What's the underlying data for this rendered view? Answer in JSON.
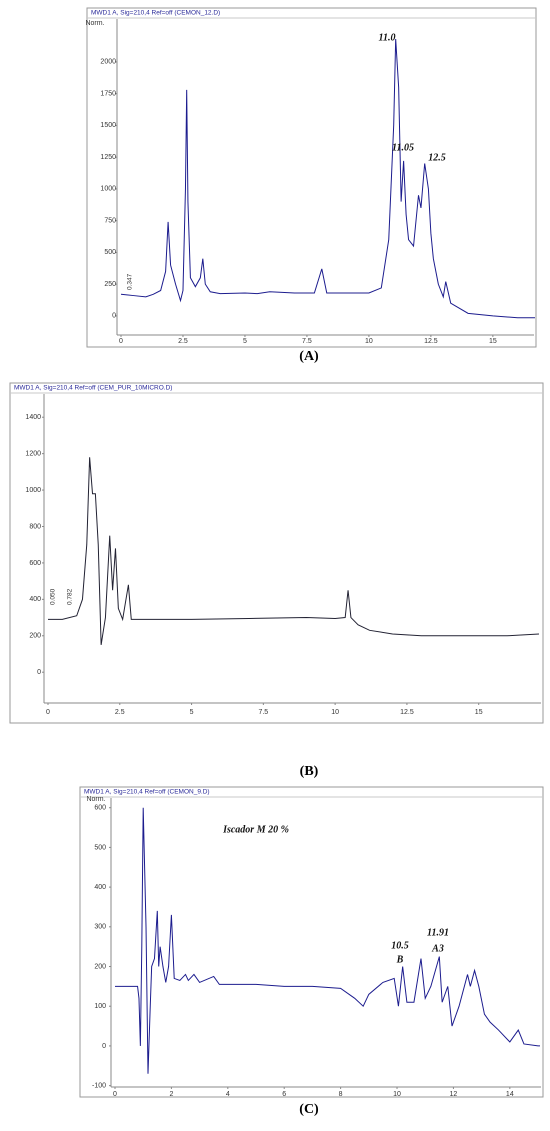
{
  "chart_data": [
    {
      "type": "line",
      "title": "MWD1 A, Sig=210,4 Ref=off (CEMON_12.D)",
      "ylabel": "Norm.",
      "caption": "(A)",
      "color": "#1c1c8e",
      "x": [
        0,
        0.5,
        1.0,
        1.3,
        1.6,
        1.8,
        1.9,
        2.0,
        2.2,
        2.4,
        2.5,
        2.6,
        2.65,
        2.7,
        2.8,
        3.0,
        3.2,
        3.3,
        3.4,
        3.6,
        4.0,
        5,
        5.5,
        6,
        7,
        7.8,
        8.1,
        8.3,
        9,
        10,
        10.5,
        10.8,
        11.0,
        11.08,
        11.2,
        11.3,
        11.4,
        11.5,
        11.6,
        11.8,
        12.0,
        12.1,
        12.25,
        12.4,
        12.5,
        12.6,
        12.8,
        13.0,
        13.1,
        13.3,
        14,
        15,
        16,
        16.7
      ],
      "values": [
        170,
        160,
        150,
        170,
        200,
        350,
        740,
        400,
        250,
        120,
        200,
        1000,
        1780,
        900,
        300,
        230,
        300,
        450,
        250,
        190,
        175,
        180,
        175,
        190,
        180,
        180,
        370,
        180,
        180,
        180,
        220,
        600,
        1500,
        2180,
        1800,
        900,
        1220,
        800,
        600,
        550,
        950,
        850,
        1200,
        1000,
        650,
        450,
        250,
        150,
        270,
        100,
        20,
        0,
        -15,
        -15
      ],
      "xlim": [
        0,
        16.7
      ],
      "ylim": [
        -190,
        2330
      ],
      "xticks": [
        0,
        2.5,
        5,
        7.5,
        10,
        12.5,
        15
      ],
      "yticks": [
        0,
        250,
        500,
        750,
        1000,
        1250,
        1500,
        1750,
        2000
      ],
      "annotations": [
        "11.0",
        "11.05",
        "12.5",
        "0.347"
      ]
    },
    {
      "type": "line",
      "title": "MWD1 A, Sig=210,4 Ref=off (CEM_PUR_10MICRO.D)",
      "caption": "(B)",
      "color": "#222233",
      "x": [
        0,
        0.5,
        1.0,
        1.2,
        1.35,
        1.45,
        1.55,
        1.65,
        1.75,
        1.85,
        2.0,
        2.15,
        2.25,
        2.35,
        2.45,
        2.6,
        2.8,
        2.9,
        3.5,
        5,
        7,
        9,
        10,
        10.35,
        10.45,
        10.55,
        10.8,
        11.2,
        12,
        13,
        15,
        16,
        17.1
      ],
      "values": [
        290,
        290,
        310,
        400,
        700,
        1180,
        980,
        980,
        700,
        150,
        300,
        750,
        450,
        680,
        350,
        290,
        480,
        290,
        290,
        290,
        295,
        300,
        295,
        300,
        450,
        300,
        260,
        230,
        210,
        200,
        200,
        200,
        210
      ],
      "xlim": [
        0,
        17.1
      ],
      "ylim": [
        -235,
        1500
      ],
      "xticks": [
        0,
        2.5,
        5,
        7.5,
        10,
        12.5,
        15
      ],
      "yticks": [
        0,
        200,
        400,
        600,
        800,
        1000,
        1200,
        1400
      ],
      "annotations": [
        "0.050",
        "0.782"
      ]
    },
    {
      "type": "line",
      "title": "MWD1 A, Sig=210,4 Ref=off (CEMON_9.D)",
      "ylabel": "Norm.",
      "caption": "(C)",
      "color": "#1c1c8e",
      "x": [
        0,
        0.8,
        0.85,
        0.9,
        0.95,
        1.0,
        1.1,
        1.17,
        1.25,
        1.3,
        1.4,
        1.5,
        1.55,
        1.6,
        1.7,
        1.8,
        1.9,
        2.0,
        2.1,
        2.3,
        2.5,
        2.6,
        2.8,
        3.0,
        3.5,
        3.7,
        5,
        6,
        7,
        8,
        8.5,
        8.8,
        9,
        9.5,
        9.9,
        10.05,
        10.2,
        10.35,
        10.6,
        10.85,
        11.0,
        11.2,
        11.5,
        11.6,
        11.8,
        11.95,
        12.2,
        12.5,
        12.6,
        12.75,
        12.9,
        13.1,
        13.3,
        13.6,
        14,
        14.3,
        14.5,
        15.0,
        15.07
      ],
      "values": [
        150,
        150,
        120,
        0,
        250,
        600,
        300,
        -70,
        100,
        200,
        220,
        340,
        200,
        250,
        200,
        160,
        200,
        330,
        170,
        165,
        180,
        165,
        180,
        160,
        175,
        155,
        155,
        150,
        150,
        145,
        120,
        100,
        130,
        160,
        170,
        100,
        200,
        110,
        110,
        220,
        120,
        150,
        225,
        110,
        150,
        50,
        100,
        180,
        150,
        190,
        150,
        80,
        60,
        40,
        10,
        40,
        5,
        0,
        0
      ],
      "xlim": [
        0,
        15.07
      ],
      "ylim": [
        -111,
        632
      ],
      "xticks": [
        0,
        2,
        4,
        6,
        8,
        10,
        12,
        14
      ],
      "yticks": [
        -100,
        0,
        100,
        200,
        300,
        400,
        500,
        600
      ],
      "annotations": [
        "Iscador M 20 %",
        "10.5",
        "B",
        "11.91",
        "A3"
      ]
    }
  ]
}
